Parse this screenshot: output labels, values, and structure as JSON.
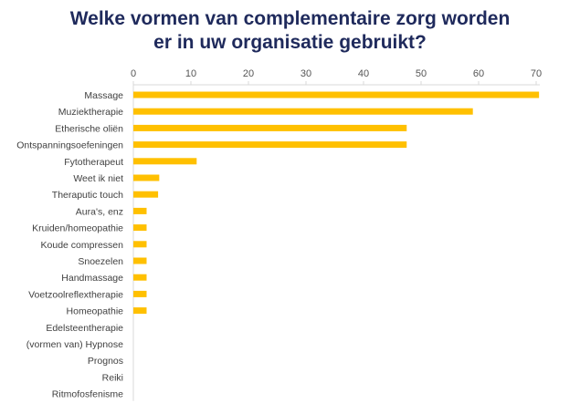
{
  "title_lines": [
    "Welke vormen van complementaire zorg worden",
    "er in uw organisatie gebruikt?"
  ],
  "colors": {
    "title": "#1f2a5c",
    "bar": "#ffc000",
    "axis": "#d9d9d9"
  },
  "chart_data": {
    "type": "bar",
    "orientation": "horizontal",
    "title": "Welke vormen van complementaire zorg worden er in uw organisatie gebruikt?",
    "categories": [
      "Massage",
      "Muziektherapie",
      "Etherische oliën",
      "Ontspanningsoefeningen",
      "Fytotherapeut",
      "Weet ik niet",
      "Theraputic touch",
      "Aura's, enz",
      "Kruiden/homeopathie",
      "Koude compressen",
      "Snoezelen",
      "Handmassage",
      "Voetzoolreflextherapie",
      "Homeopathie",
      "Edelsteentherapie",
      "(vormen van) Hypnose",
      "Prognos",
      "Reiki",
      "Ritmofosfenisme"
    ],
    "values": [
      70.5,
      59,
      47.5,
      47.5,
      11,
      4.5,
      4.3,
      2.3,
      2.3,
      2.3,
      2.3,
      2.3,
      2.3,
      2.3,
      0,
      0,
      0,
      0,
      0
    ],
    "xlim": [
      0,
      70
    ],
    "xticks": [
      "0",
      "10",
      "20",
      "30",
      "40",
      "50",
      "60",
      "70"
    ],
    "xlabel": "",
    "ylabel": "",
    "axis_position": "top",
    "grid": false,
    "legend": "none"
  }
}
